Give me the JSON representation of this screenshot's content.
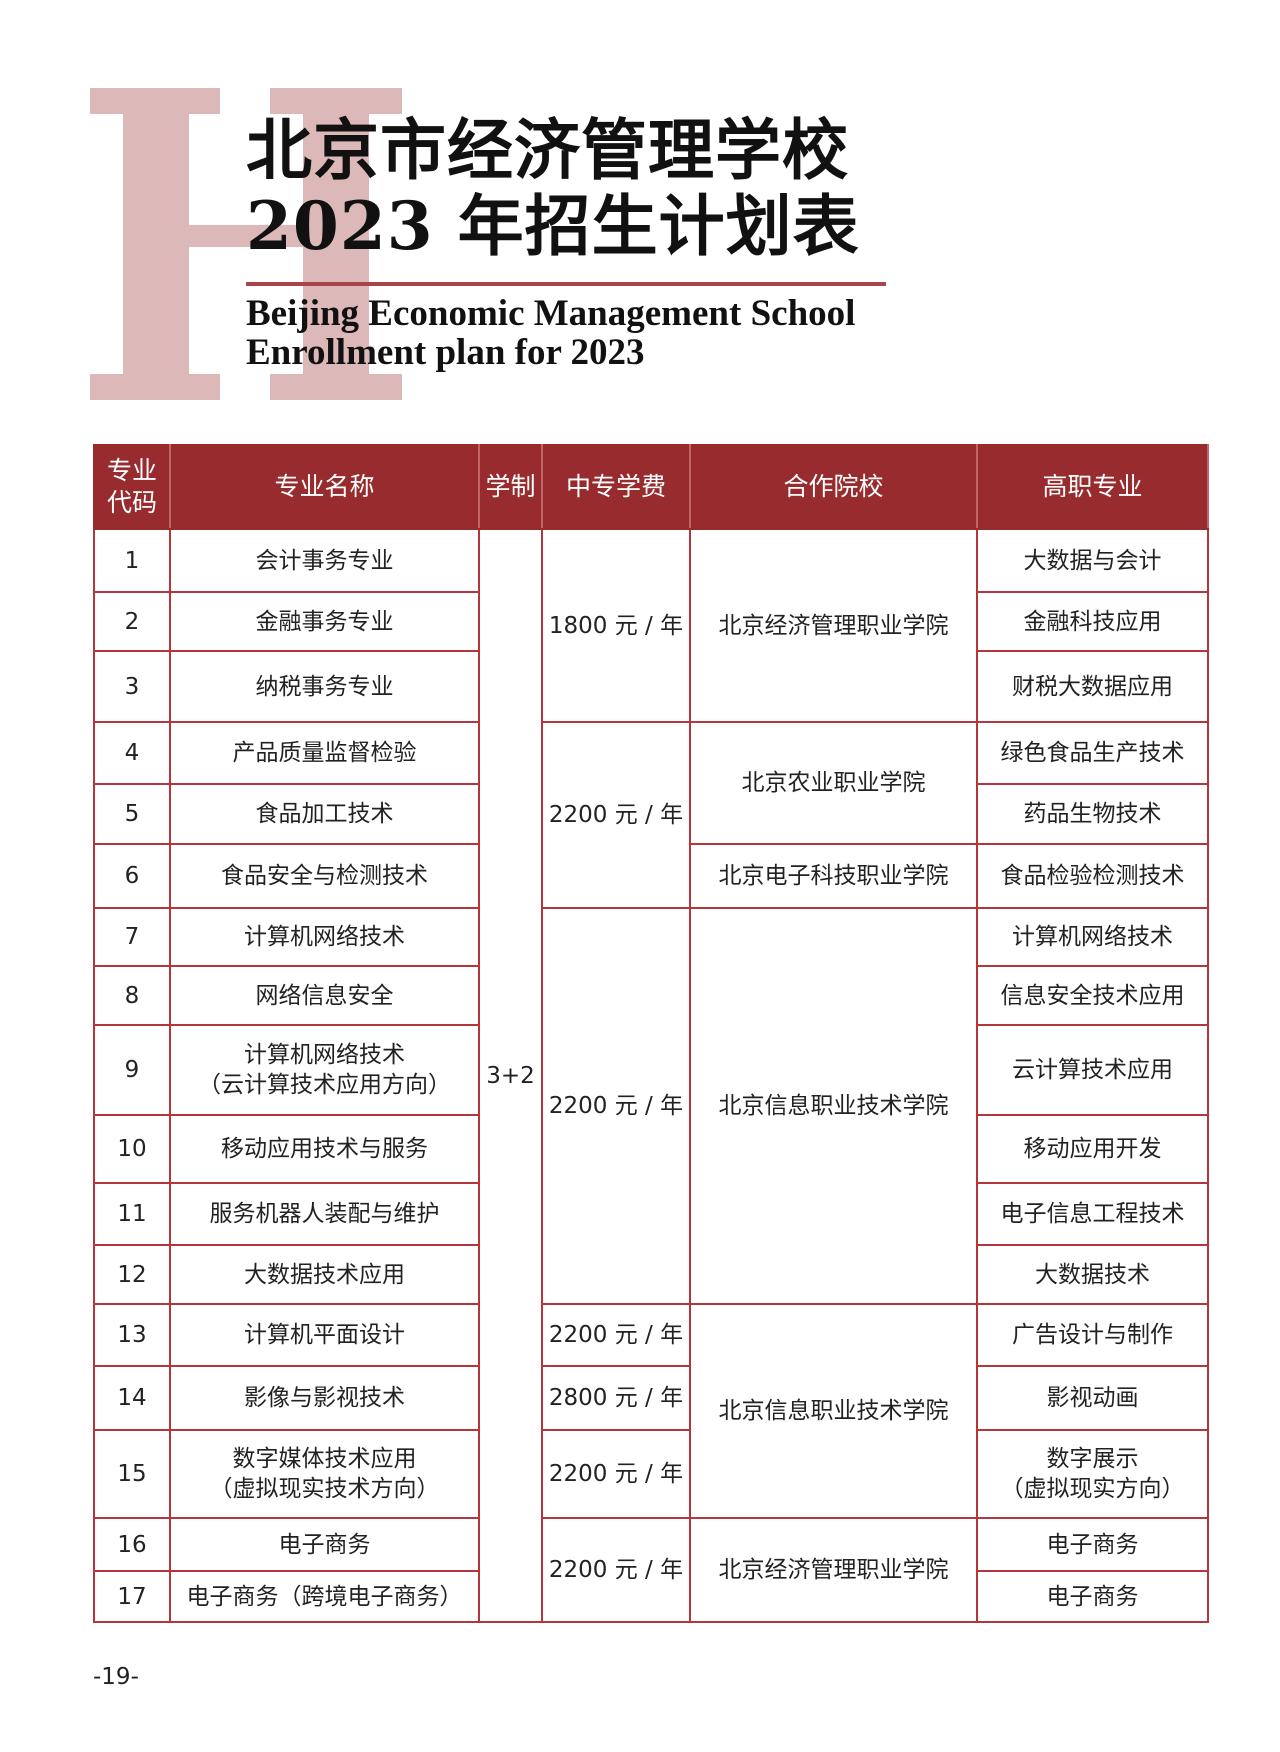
{
  "decor": {
    "letter": "H",
    "accent": "#982b2d",
    "letter_color": "#dcb8b8"
  },
  "title": {
    "line1": "北京市经济管理学校",
    "line2": "2023 年招生计划表"
  },
  "subtitle": {
    "line1": "Beijing Economic Management School",
    "line2": "Enrollment plan for 2023"
  },
  "table": {
    "headers": [
      "专业\n代码",
      "专业名称",
      "学制",
      "中专学费",
      "合作院校",
      "高职专业"
    ],
    "duration": {
      "text": "3+2",
      "span": 17
    },
    "rows": [
      {
        "code": "1",
        "major": "会计事务专业",
        "higher": "大数据与会计"
      },
      {
        "code": "2",
        "major": "金融事务专业",
        "higher": "金融科技应用"
      },
      {
        "code": "3",
        "major": "纳税事务专业",
        "higher": "财税大数据应用"
      },
      {
        "code": "4",
        "major": "产品质量监督检验",
        "higher": "绿色食品生产技术"
      },
      {
        "code": "5",
        "major": "食品加工技术",
        "higher": "药品生物技术"
      },
      {
        "code": "6",
        "major": "食品安全与检测技术",
        "higher": "食品检验检测技术"
      },
      {
        "code": "7",
        "major": "计算机网络技术",
        "higher": "计算机网络技术"
      },
      {
        "code": "8",
        "major": "网络信息安全",
        "higher": "信息安全技术应用"
      },
      {
        "code": "9",
        "major": "计算机网络技术\n（云计算技术应用方向）",
        "higher": "云计算技术应用"
      },
      {
        "code": "10",
        "major": "移动应用技术与服务",
        "higher": "移动应用开发"
      },
      {
        "code": "11",
        "major": "服务机器人装配与维护",
        "higher": "电子信息工程技术"
      },
      {
        "code": "12",
        "major": "大数据技术应用",
        "higher": "大数据技术"
      },
      {
        "code": "13",
        "major": "计算机平面设计",
        "higher": "广告设计与制作"
      },
      {
        "code": "14",
        "major": "影像与影视技术",
        "higher": "影视动画"
      },
      {
        "code": "15",
        "major": "数字媒体技术应用\n（虚拟现实技术方向）",
        "higher": "数字展示\n（虚拟现实方向）"
      },
      {
        "code": "16",
        "major": "电子商务",
        "higher": "电子商务"
      },
      {
        "code": "17",
        "major": "电子商务（跨境电子商务）",
        "higher": "电子商务"
      }
    ],
    "fees": [
      {
        "text": "1800 元 / 年",
        "span": 3
      },
      {
        "text": "2200 元 / 年",
        "span": 3
      },
      {
        "text": "2200 元 / 年",
        "span": 6
      },
      {
        "text": "2200 元 / 年",
        "span": 1
      },
      {
        "text": "2800 元 / 年",
        "span": 1
      },
      {
        "text": "2200 元 / 年",
        "span": 1
      },
      {
        "text": "2200 元 / 年",
        "span": 2
      }
    ],
    "colleges": [
      {
        "text": "北京经济管理职业学院",
        "span": 3
      },
      {
        "text": "北京农业职业学院",
        "span": 2
      },
      {
        "text": "北京电子科技职业学院",
        "span": 1
      },
      {
        "text": "北京信息职业技术学院",
        "span": 6
      },
      {
        "text": "北京信息职业技术学院",
        "span": 3
      },
      {
        "text": "北京经济管理职业学院",
        "span": 2
      }
    ]
  },
  "page_number": "-19-"
}
